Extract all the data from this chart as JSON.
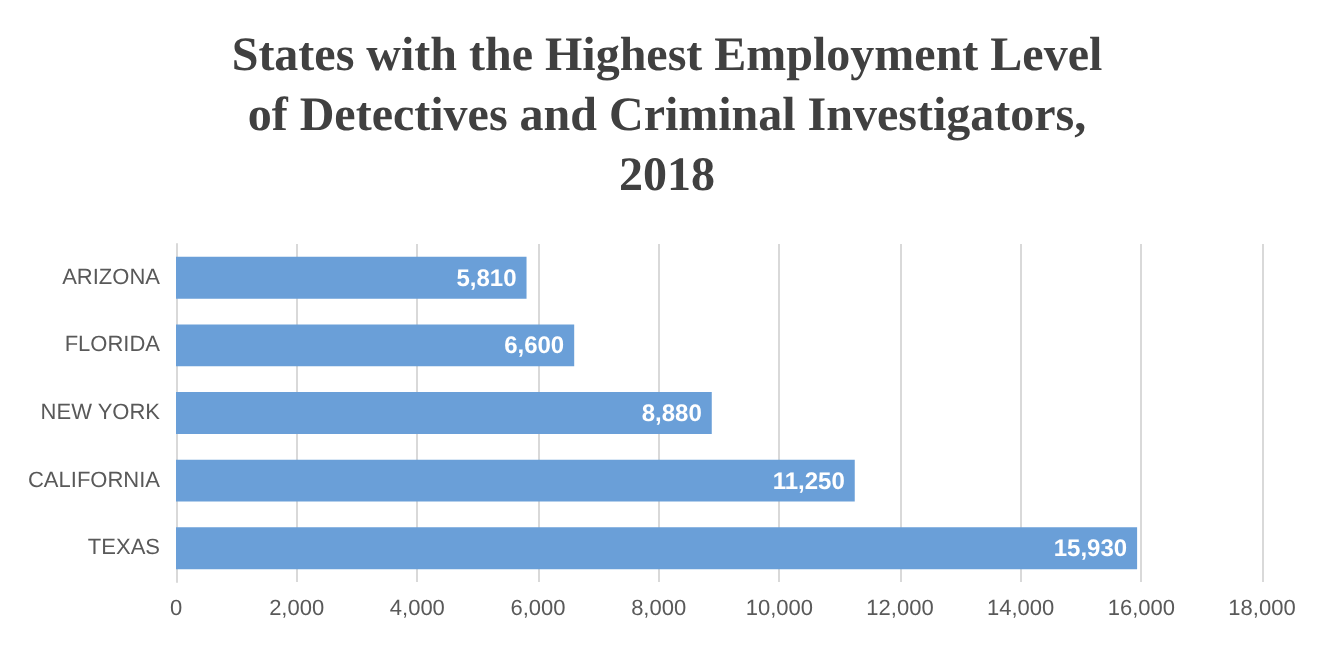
{
  "chart_data": {
    "type": "bar",
    "orientation": "horizontal",
    "title": "States with the Highest Employment Level of Detectives and Criminal Investigators, 2018",
    "categories": [
      "ARIZONA",
      "FLORIDA",
      "NEW YORK",
      "CALIFORNIA",
      "TEXAS"
    ],
    "values": [
      5810,
      6600,
      8880,
      11250,
      15930
    ],
    "color": "#6a9fd8",
    "value_labels": [
      "5,810",
      "6,600",
      "8,880",
      "11,250",
      "15,930"
    ],
    "xlim": [
      0,
      18000
    ],
    "xticks": [
      {
        "value": 0,
        "label": "0"
      },
      {
        "value": 2000,
        "label": "2,000"
      },
      {
        "value": 4000,
        "label": "4,000"
      },
      {
        "value": 6000,
        "label": "6,000"
      },
      {
        "value": 8000,
        "label": "8,000"
      },
      {
        "value": 10000,
        "label": "10,000"
      },
      {
        "value": 12000,
        "label": "12,000"
      },
      {
        "value": 14000,
        "label": "14,000"
      },
      {
        "value": 16000,
        "label": "16,000"
      },
      {
        "value": 18000,
        "label": "18,000"
      }
    ],
    "grid": "x"
  }
}
